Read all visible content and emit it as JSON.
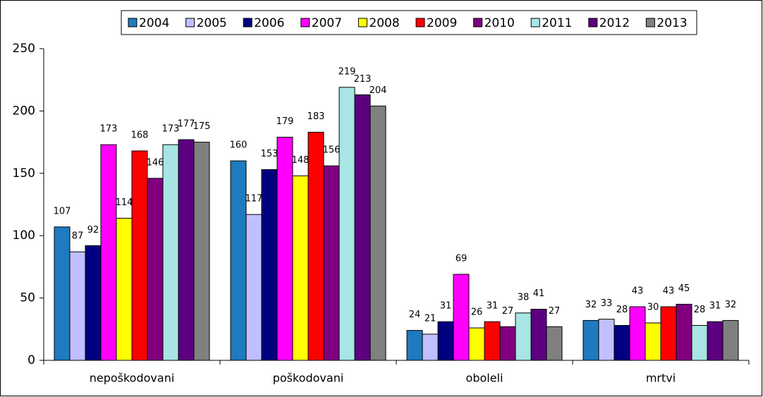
{
  "chart_data": {
    "type": "bar",
    "categories": [
      "nepoškodovani",
      "poškodovani",
      "oboleli",
      "mrtvi"
    ],
    "series": [
      {
        "name": "2004",
        "color": "#1f7abf",
        "values": [
          107,
          160,
          24,
          32
        ]
      },
      {
        "name": "2005",
        "color": "#c0c0ff",
        "values": [
          87,
          117,
          21,
          33
        ]
      },
      {
        "name": "2006",
        "color": "#000080",
        "values": [
          92,
          153,
          31,
          28
        ]
      },
      {
        "name": "2007",
        "color": "#ff00ff",
        "values": [
          173,
          179,
          69,
          43
        ]
      },
      {
        "name": "2008",
        "color": "#ffff00",
        "values": [
          114,
          148,
          26,
          30
        ]
      },
      {
        "name": "2009",
        "color": "#ff0000",
        "values": [
          168,
          183,
          31,
          43
        ]
      },
      {
        "name": "2010",
        "color": "#800080",
        "values": [
          146,
          156,
          27,
          45
        ]
      },
      {
        "name": "2011",
        "color": "#a8e6e6",
        "values": [
          173,
          219,
          38,
          28
        ]
      },
      {
        "name": "2012",
        "color": "#5c0080",
        "values": [
          177,
          213,
          41,
          31
        ]
      },
      {
        "name": "2013",
        "color": "#808080",
        "values": [
          175,
          204,
          27,
          32
        ]
      }
    ],
    "ylim": [
      0,
      250
    ],
    "yticks": [
      0,
      50,
      100,
      150,
      200,
      250
    ],
    "legend": "top"
  }
}
